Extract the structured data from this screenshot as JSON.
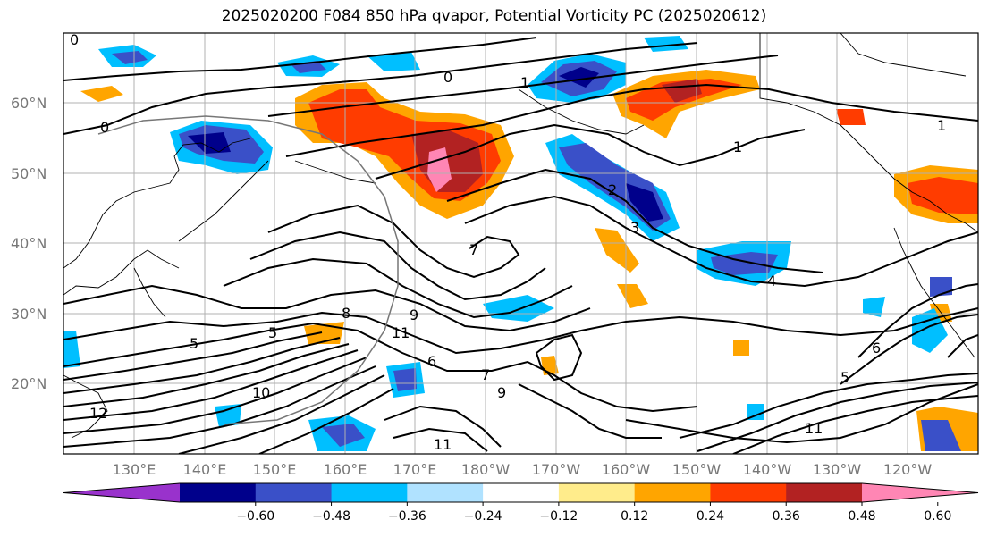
{
  "title": "2025020200 F084 850 hPa qvapor, Potential Vorticity PC (2025020612)",
  "lat_labels": [
    "60°N",
    "50°N",
    "40°N",
    "30°N",
    "20°N"
  ],
  "lon_labels": [
    "130°E",
    "140°E",
    "150°E",
    "160°E",
    "170°E",
    "180°W",
    "170°W",
    "160°W",
    "150°W",
    "140°W",
    "130°W",
    "120°W"
  ],
  "colorbar": {
    "colors": [
      "#9932cc",
      "#00008b",
      "#3a50c8",
      "#00bfff",
      "#b0e2ff",
      "#ffffff",
      "#ffec8b",
      "#ffa500",
      "#ff3c00",
      "#b22222",
      "#ff86b4"
    ],
    "tick_labels": [
      "−0.60",
      "−0.48",
      "−0.36",
      "−0.24",
      "−0.12",
      "0.12",
      "0.24",
      "0.36",
      "0.48",
      "0.60"
    ]
  },
  "contour_labels": [
    "0",
    "0",
    "0",
    "1",
    "1",
    "1",
    "2",
    "3",
    "4",
    "5",
    "5",
    "5",
    "6",
    "6",
    "7",
    "7",
    "8",
    "9",
    "9",
    "10",
    "11",
    "11",
    "11",
    "12"
  ]
}
